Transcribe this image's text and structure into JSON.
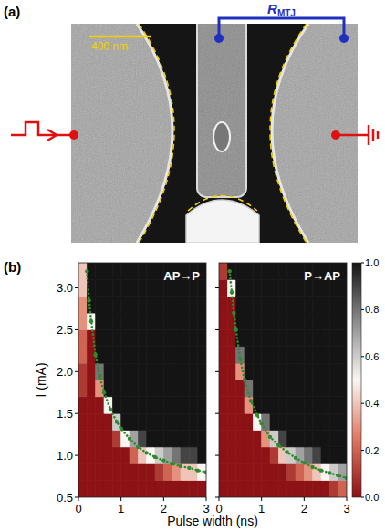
{
  "figure": {
    "panel_a_label": "(a)",
    "panel_b_label": "(b)",
    "scale_bar": "400 nm",
    "resistance": {
      "symbol": "R",
      "subscript": "MTJ"
    },
    "x_label": "Pulse width (ns)",
    "colorbar": {
      "range": [
        0,
        1
      ],
      "ticks": [
        {
          "value": 0,
          "label": "0.0"
        },
        0.2,
        0.4,
        0.6,
        0.8,
        {
          "value": 1,
          "label": "1.0"
        }
      ]
    }
  },
  "chart_data": [
    {
      "type": "heatmap",
      "title": "AP→P",
      "y_label": "I (mA)",
      "xlim": [
        0,
        3
      ],
      "ylim": [
        0.5,
        3.3
      ],
      "xticks": [
        0,
        1,
        2,
        3
      ],
      "yticks": [
        0.5,
        {
          "value": 1,
          "label": "1.0"
        },
        1.5,
        {
          "value": 2,
          "label": "2.0"
        },
        2.5,
        {
          "value": 3,
          "label": "3.0"
        }
      ],
      "x_edges": [
        0,
        0.2,
        0.4,
        0.6,
        0.8,
        1.0,
        1.2,
        1.4,
        1.6,
        1.8,
        2.0,
        2.2,
        2.4,
        2.6,
        2.8,
        3.0
      ],
      "y_edges": [
        0.5,
        0.7,
        0.9,
        1.1,
        1.3,
        1.5,
        1.7,
        1.9,
        2.1,
        2.3,
        2.5,
        2.7,
        2.9,
        3.1,
        3.3
      ],
      "z": [
        [
          0,
          0,
          0,
          0,
          0,
          0,
          0,
          0,
          0,
          0,
          0,
          0,
          0,
          0,
          0
        ],
        [
          0,
          0,
          0,
          0,
          0,
          0,
          0,
          0,
          0,
          0.1,
          0.2,
          0.3,
          0.4,
          0.4,
          0.5
        ],
        [
          0,
          0,
          0,
          0,
          0,
          0,
          0.2,
          0.4,
          0.5,
          0.6,
          0.7,
          0.8,
          0.9,
          0.9,
          1
        ],
        [
          0,
          0,
          0,
          0,
          0.1,
          0.5,
          0.7,
          0.9,
          1,
          1,
          1,
          1,
          1,
          1,
          1
        ],
        [
          0,
          0,
          0,
          0,
          0.6,
          1,
          1,
          1,
          1,
          1,
          1,
          1,
          1,
          1,
          1
        ],
        [
          0,
          0,
          0,
          0.5,
          1,
          1,
          1,
          1,
          1,
          1,
          1,
          1,
          1,
          1,
          1
        ],
        [
          0.1,
          0,
          0.3,
          1,
          1,
          1,
          1,
          1,
          1,
          1,
          1,
          1,
          1,
          1,
          1
        ],
        [
          0.1,
          0,
          0.8,
          1,
          1,
          1,
          1,
          1,
          1,
          1,
          1,
          1,
          1,
          1,
          1
        ],
        [
          0.2,
          0,
          1,
          1,
          1,
          1,
          1,
          1,
          1,
          1,
          1,
          1,
          1,
          1,
          1
        ],
        [
          0.2,
          0,
          1,
          1,
          1,
          1,
          1,
          1,
          1,
          1,
          1,
          1,
          1,
          1,
          1
        ],
        [
          0.3,
          0.5,
          1,
          1,
          1,
          1,
          1,
          1,
          1,
          1,
          1,
          1,
          1,
          1,
          1
        ],
        [
          0.3,
          1,
          1,
          1,
          1,
          1,
          1,
          1,
          1,
          1,
          1,
          1,
          1,
          1,
          1
        ],
        [
          0.4,
          1,
          1,
          1,
          1,
          1,
          1,
          1,
          1,
          1,
          1,
          1,
          1,
          1,
          1
        ],
        [
          0.4,
          1,
          1,
          1,
          1,
          1,
          1,
          1,
          1,
          1,
          1,
          1,
          1,
          1,
          1
        ]
      ],
      "series": [
        {
          "color": "#2e8b2e",
          "marker": "o",
          "line_style": "dotted",
          "x": [
            0.2,
            0.25,
            0.3,
            0.4,
            0.5,
            0.6,
            0.75,
            0.9,
            1.0,
            1.2,
            1.4,
            1.6,
            1.8,
            2.0,
            2.2,
            2.4,
            2.6,
            2.8,
            3.0
          ],
          "values": [
            3.2,
            2.85,
            2.6,
            2.2,
            1.95,
            1.75,
            1.55,
            1.4,
            1.32,
            1.2,
            1.1,
            1.03,
            0.98,
            0.94,
            0.9,
            0.87,
            0.85,
            0.82,
            0.8
          ]
        }
      ]
    },
    {
      "type": "heatmap",
      "title": "P→AP",
      "tick_labels": "x",
      "xlim": [
        0,
        3
      ],
      "ylim": [
        0.5,
        3.3
      ],
      "xticks": [
        0,
        1,
        2,
        3
      ],
      "yticks": [
        0.5,
        {
          "value": 1,
          "label": "1.0"
        },
        1.5,
        {
          "value": 2,
          "label": "2.0"
        },
        2.5,
        {
          "value": 3,
          "label": "3.0"
        }
      ],
      "x_edges": [
        0,
        0.2,
        0.4,
        0.6,
        0.8,
        1.0,
        1.2,
        1.4,
        1.6,
        1.8,
        2.0,
        2.2,
        2.4,
        2.6,
        2.8,
        3.0
      ],
      "y_edges": [
        0.5,
        0.7,
        0.9,
        1.1,
        1.3,
        1.5,
        1.7,
        1.9,
        2.1,
        2.3,
        2.5,
        2.7,
        2.9,
        3.1,
        3.3
      ],
      "z": [
        [
          0,
          0,
          0,
          0,
          0,
          0,
          0,
          0,
          0,
          0,
          0,
          0,
          0,
          0.1,
          0.2
        ],
        [
          0,
          0,
          0,
          0,
          0,
          0,
          0,
          0,
          0.1,
          0.2,
          0.3,
          0.4,
          0.5,
          0.6,
          0.7
        ],
        [
          0,
          0,
          0,
          0,
          0,
          0,
          0.1,
          0.4,
          0.6,
          0.7,
          0.8,
          0.9,
          1,
          1,
          1
        ],
        [
          0,
          0,
          0,
          0,
          0,
          0.3,
          0.6,
          0.9,
          1,
          1,
          1,
          1,
          1,
          1,
          1
        ],
        [
          0,
          0,
          0,
          0,
          0.5,
          0.8,
          1,
          1,
          1,
          1,
          1,
          1,
          1,
          1,
          1
        ],
        [
          0,
          0,
          0,
          0.3,
          1,
          1,
          1,
          1,
          1,
          1,
          1,
          1,
          1,
          1,
          1
        ],
        [
          0,
          0,
          0,
          0.8,
          1,
          1,
          1,
          1,
          1,
          1,
          1,
          1,
          1,
          1,
          1
        ],
        [
          0,
          0,
          0.3,
          1,
          1,
          1,
          1,
          1,
          1,
          1,
          1,
          1,
          1,
          1,
          1
        ],
        [
          0,
          0,
          0.8,
          1,
          1,
          1,
          1,
          1,
          1,
          1,
          1,
          1,
          1,
          1,
          1
        ],
        [
          0,
          0,
          1,
          1,
          1,
          1,
          1,
          1,
          1,
          1,
          1,
          1,
          1,
          1,
          1
        ],
        [
          0,
          0,
          1,
          1,
          1,
          1,
          1,
          1,
          1,
          1,
          1,
          1,
          1,
          1,
          1
        ],
        [
          0,
          0,
          1,
          1,
          1,
          1,
          1,
          1,
          1,
          1,
          1,
          1,
          1,
          1,
          1
        ],
        [
          0,
          0.5,
          1,
          1,
          1,
          1,
          1,
          1,
          1,
          1,
          1,
          1,
          1,
          1,
          1
        ],
        [
          0.1,
          1,
          1,
          1,
          1,
          1,
          1,
          1,
          1,
          1,
          1,
          1,
          1,
          1,
          1
        ]
      ],
      "series": [
        {
          "color": "#2e8b2e",
          "marker": "o",
          "line_style": "dotted",
          "x": [
            0.25,
            0.3,
            0.35,
            0.4,
            0.5,
            0.6,
            0.75,
            0.9,
            1.0,
            1.2,
            1.4,
            1.6,
            1.8,
            2.0,
            2.2,
            2.4,
            2.6,
            2.8,
            3.0
          ],
          "values": [
            3.2,
            2.95,
            2.7,
            2.5,
            2.15,
            1.9,
            1.65,
            1.48,
            1.38,
            1.22,
            1.12,
            1.04,
            0.97,
            0.91,
            0.86,
            0.82,
            0.79,
            0.76,
            0.73
          ]
        }
      ]
    }
  ]
}
